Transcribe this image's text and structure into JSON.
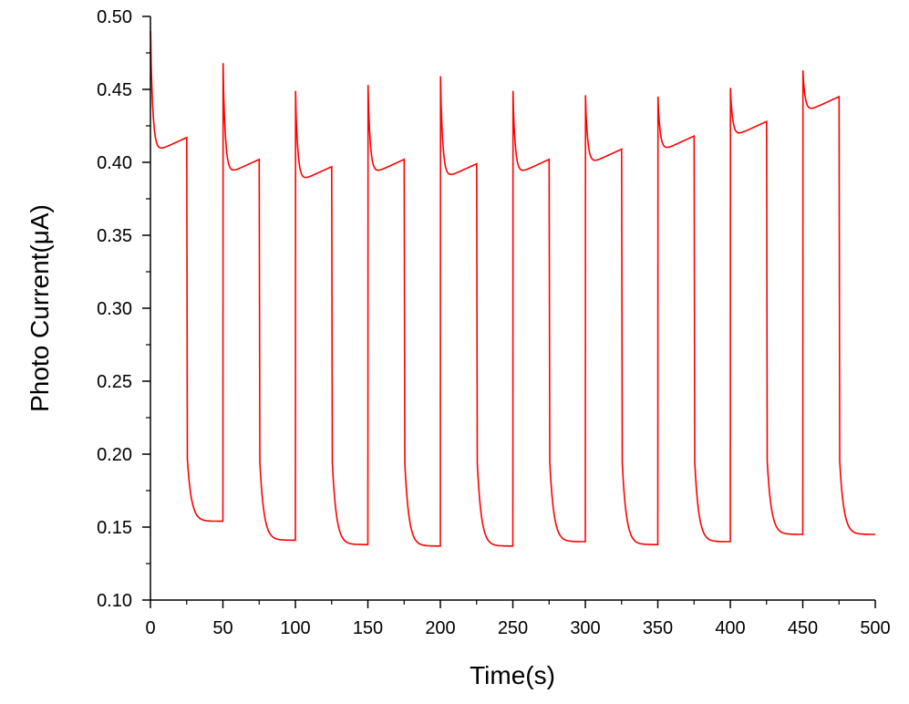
{
  "chart_data": {
    "type": "line",
    "title": "",
    "xlabel": "Time(s)",
    "ylabel": "Photo Current(μA)",
    "xlim": [
      0,
      500
    ],
    "ylim": [
      0.1,
      0.5
    ],
    "x_ticks": [
      "0",
      "50",
      "100",
      "150",
      "200",
      "250",
      "300",
      "350",
      "400",
      "450",
      "500"
    ],
    "y_ticks": [
      "0.10",
      "0.15",
      "0.20",
      "0.25",
      "0.30",
      "0.35",
      "0.40",
      "0.45",
      "0.50"
    ],
    "grid": false,
    "line_color": "#ff0000",
    "series": [
      {
        "period_s": 50,
        "on_duration_s": 25,
        "cycles": [
          {
            "on_start": 0,
            "on_peak": 0.49,
            "on_end": 0.417,
            "off_end": 0.154
          },
          {
            "on_start": 50,
            "on_peak": 0.468,
            "on_end": 0.402,
            "off_end": 0.141
          },
          {
            "on_start": 100,
            "on_peak": 0.449,
            "on_end": 0.397,
            "off_end": 0.138
          },
          {
            "on_start": 150,
            "on_peak": 0.453,
            "on_end": 0.402,
            "off_end": 0.137
          },
          {
            "on_start": 200,
            "on_peak": 0.459,
            "on_end": 0.399,
            "off_end": 0.137
          },
          {
            "on_start": 250,
            "on_peak": 0.449,
            "on_end": 0.402,
            "off_end": 0.14
          },
          {
            "on_start": 300,
            "on_peak": 0.446,
            "on_end": 0.409,
            "off_end": 0.138
          },
          {
            "on_start": 350,
            "on_peak": 0.445,
            "on_end": 0.418,
            "off_end": 0.14
          },
          {
            "on_start": 400,
            "on_peak": 0.451,
            "on_end": 0.428,
            "off_end": 0.145
          },
          {
            "on_start": 450,
            "on_peak": 0.463,
            "on_end": 0.445,
            "off_end": 0.145
          }
        ]
      }
    ]
  }
}
